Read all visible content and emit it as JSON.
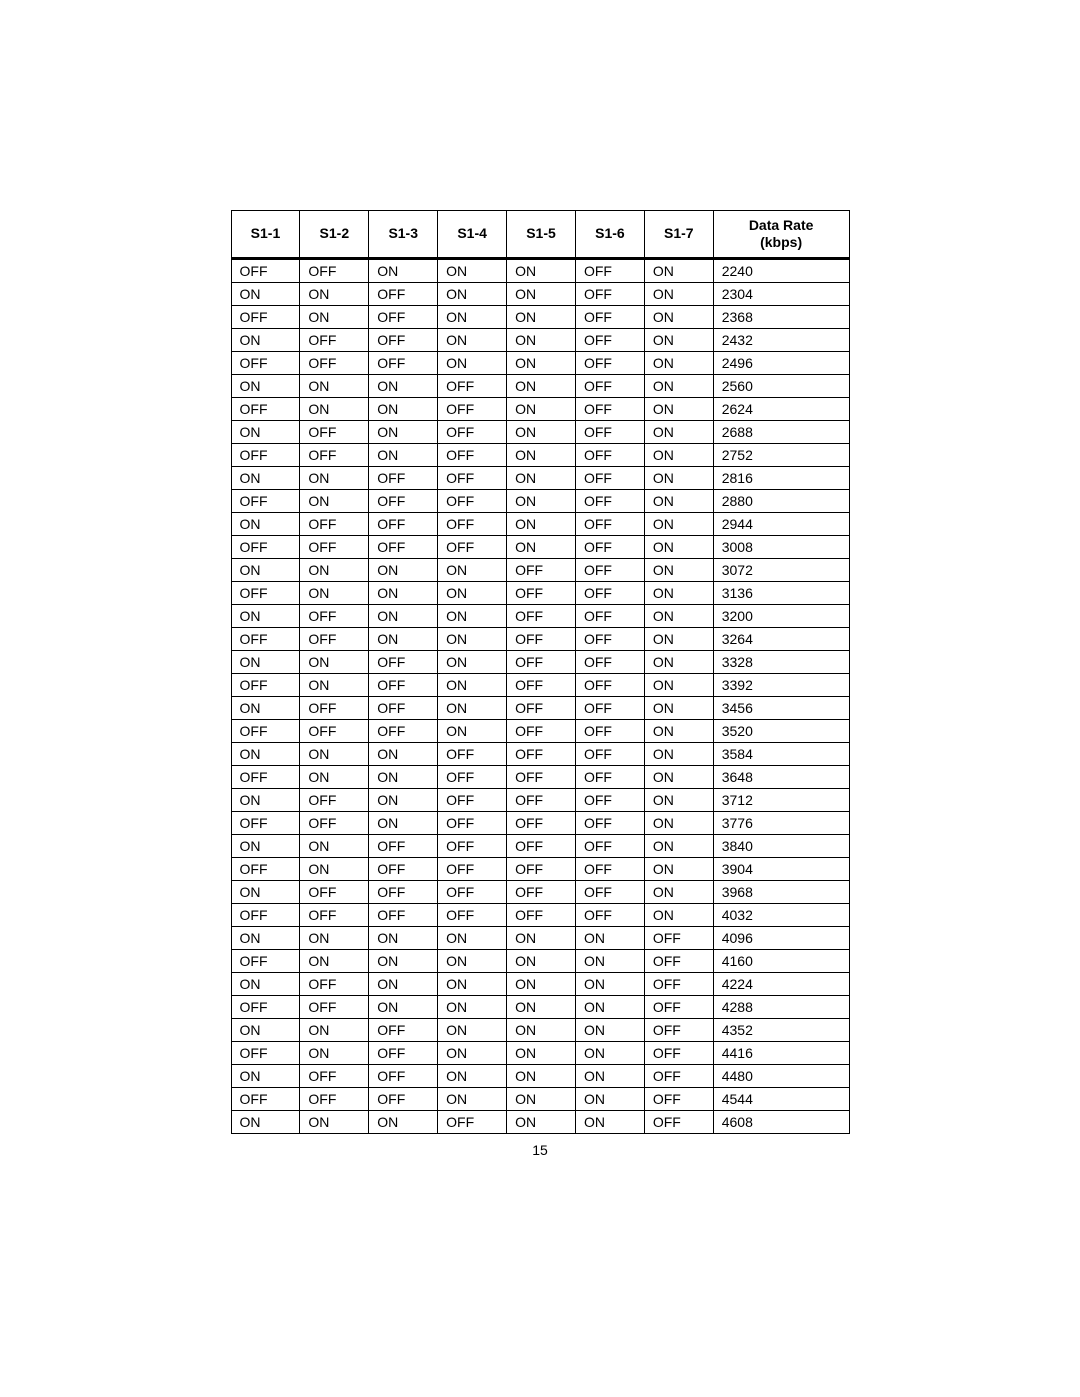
{
  "table": {
    "headers": [
      "S1-1",
      "S1-2",
      "S1-3",
      "S1-4",
      "S1-5",
      "S1-6",
      "S1-7",
      "Data Rate\n(kbps)"
    ],
    "rows": [
      [
        "OFF",
        "OFF",
        "ON",
        "ON",
        "ON",
        "OFF",
        "ON",
        "2240"
      ],
      [
        "ON",
        "ON",
        "OFF",
        "ON",
        "ON",
        "OFF",
        "ON",
        "2304"
      ],
      [
        "OFF",
        "ON",
        "OFF",
        "ON",
        "ON",
        "OFF",
        "ON",
        "2368"
      ],
      [
        "ON",
        "OFF",
        "OFF",
        "ON",
        "ON",
        "OFF",
        "ON",
        "2432"
      ],
      [
        "OFF",
        "OFF",
        "OFF",
        "ON",
        "ON",
        "OFF",
        "ON",
        "2496"
      ],
      [
        "ON",
        "ON",
        "ON",
        "OFF",
        "ON",
        "OFF",
        "ON",
        "2560"
      ],
      [
        "OFF",
        "ON",
        "ON",
        "OFF",
        "ON",
        "OFF",
        "ON",
        "2624"
      ],
      [
        "ON",
        "OFF",
        "ON",
        "OFF",
        "ON",
        "OFF",
        "ON",
        "2688"
      ],
      [
        "OFF",
        "OFF",
        "ON",
        "OFF",
        "ON",
        "OFF",
        "ON",
        "2752"
      ],
      [
        "ON",
        "ON",
        "OFF",
        "OFF",
        "ON",
        "OFF",
        "ON",
        "2816"
      ],
      [
        "OFF",
        "ON",
        "OFF",
        "OFF",
        "ON",
        "OFF",
        "ON",
        "2880"
      ],
      [
        "ON",
        "OFF",
        "OFF",
        "OFF",
        "ON",
        "OFF",
        "ON",
        "2944"
      ],
      [
        "OFF",
        "OFF",
        "OFF",
        "OFF",
        "ON",
        "OFF",
        "ON",
        "3008"
      ],
      [
        "ON",
        "ON",
        "ON",
        "ON",
        "OFF",
        "OFF",
        "ON",
        "3072"
      ],
      [
        "OFF",
        "ON",
        "ON",
        "ON",
        "OFF",
        "OFF",
        "ON",
        "3136"
      ],
      [
        "ON",
        "OFF",
        "ON",
        "ON",
        "OFF",
        "OFF",
        "ON",
        "3200"
      ],
      [
        "OFF",
        "OFF",
        "ON",
        "ON",
        "OFF",
        "OFF",
        "ON",
        "3264"
      ],
      [
        "ON",
        "ON",
        "OFF",
        "ON",
        "OFF",
        "OFF",
        "ON",
        "3328"
      ],
      [
        "OFF",
        "ON",
        "OFF",
        "ON",
        "OFF",
        "OFF",
        "ON",
        "3392"
      ],
      [
        "ON",
        "OFF",
        "OFF",
        "ON",
        "OFF",
        "OFF",
        "ON",
        "3456"
      ],
      [
        "OFF",
        "OFF",
        "OFF",
        "ON",
        "OFF",
        "OFF",
        "ON",
        "3520"
      ],
      [
        "ON",
        "ON",
        "ON",
        "OFF",
        "OFF",
        "OFF",
        "ON",
        "3584"
      ],
      [
        "OFF",
        "ON",
        "ON",
        "OFF",
        "OFF",
        "OFF",
        "ON",
        "3648"
      ],
      [
        "ON",
        "OFF",
        "ON",
        "OFF",
        "OFF",
        "OFF",
        "ON",
        "3712"
      ],
      [
        "OFF",
        "OFF",
        "ON",
        "OFF",
        "OFF",
        "OFF",
        "ON",
        "3776"
      ],
      [
        "ON",
        "ON",
        "OFF",
        "OFF",
        "OFF",
        "OFF",
        "ON",
        "3840"
      ],
      [
        "OFF",
        "ON",
        "OFF",
        "OFF",
        "OFF",
        "OFF",
        "ON",
        "3904"
      ],
      [
        "ON",
        "OFF",
        "OFF",
        "OFF",
        "OFF",
        "OFF",
        "ON",
        "3968"
      ],
      [
        "OFF",
        "OFF",
        "OFF",
        "OFF",
        "OFF",
        "OFF",
        "ON",
        "4032"
      ],
      [
        "ON",
        "ON",
        "ON",
        "ON",
        "ON",
        "ON",
        "OFF",
        "4096"
      ],
      [
        "OFF",
        "ON",
        "ON",
        "ON",
        "ON",
        "ON",
        "OFF",
        "4160"
      ],
      [
        "ON",
        "OFF",
        "ON",
        "ON",
        "ON",
        "ON",
        "OFF",
        "4224"
      ],
      [
        "OFF",
        "OFF",
        "ON",
        "ON",
        "ON",
        "ON",
        "OFF",
        "4288"
      ],
      [
        "ON",
        "ON",
        "OFF",
        "ON",
        "ON",
        "ON",
        "OFF",
        "4352"
      ],
      [
        "OFF",
        "ON",
        "OFF",
        "ON",
        "ON",
        "ON",
        "OFF",
        "4416"
      ],
      [
        "ON",
        "OFF",
        "OFF",
        "ON",
        "ON",
        "ON",
        "OFF",
        "4480"
      ],
      [
        "OFF",
        "OFF",
        "OFF",
        "ON",
        "ON",
        "ON",
        "OFF",
        "4544"
      ],
      [
        "ON",
        "ON",
        "ON",
        "OFF",
        "ON",
        "ON",
        "OFF",
        "4608"
      ]
    ]
  },
  "page_number": "15"
}
